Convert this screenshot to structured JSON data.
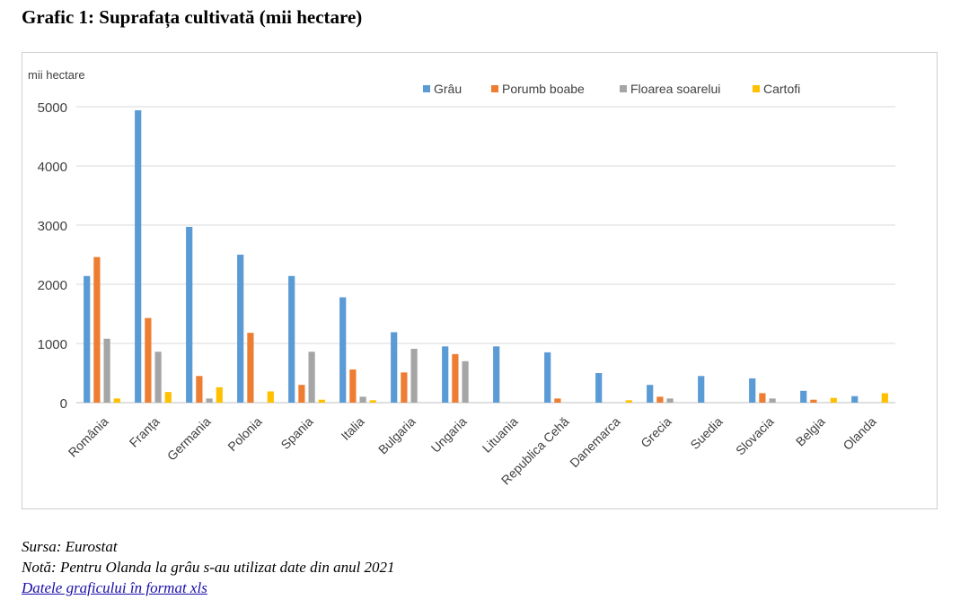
{
  "title": "Grafic 1: Suprafața cultivată (mii hectare)",
  "source": "Sursa: Eurostat",
  "note": "Notă: Pentru Olanda la grâu s-au utilizat date din anul 2021",
  "link_label": "Datele graficului în format xls",
  "chart_data": {
    "type": "bar",
    "ylabel": "mii hectare",
    "ylim": [
      0,
      5000
    ],
    "yticks": [
      "0",
      "1000",
      "2000",
      "3000",
      "4000",
      "5000"
    ],
    "grid": true,
    "legend_position": "top",
    "categories": [
      "România",
      "Franța",
      "Germania",
      "Polonia",
      "Spania",
      "Italia",
      "Bulgaria",
      "Ungaria",
      "Lituania",
      "Republica Cehă",
      "Danemarca",
      "Grecia",
      "Suedia",
      "Slovacia",
      "Belgia",
      "Olanda"
    ],
    "series": [
      {
        "name": "Grâu",
        "color": "#5b9bd5",
        "values": [
          2140,
          4940,
          2970,
          2500,
          2140,
          1780,
          1190,
          950,
          950,
          850,
          500,
          300,
          450,
          410,
          200,
          110
        ]
      },
      {
        "name": "Porumb boabe",
        "color": "#ed7d31",
        "values": [
          2460,
          1430,
          450,
          1180,
          300,
          560,
          510,
          820,
          0,
          70,
          0,
          100,
          0,
          160,
          50,
          0
        ]
      },
      {
        "name": "Floarea soarelui",
        "color": "#a5a5a5",
        "values": [
          1080,
          860,
          70,
          0,
          860,
          100,
          910,
          700,
          0,
          0,
          0,
          70,
          0,
          70,
          0,
          0
        ]
      },
      {
        "name": "Cartofi",
        "color": "#ffc000",
        "values": [
          70,
          180,
          260,
          190,
          50,
          40,
          0,
          0,
          0,
          0,
          40,
          0,
          0,
          0,
          80,
          160
        ]
      }
    ]
  }
}
